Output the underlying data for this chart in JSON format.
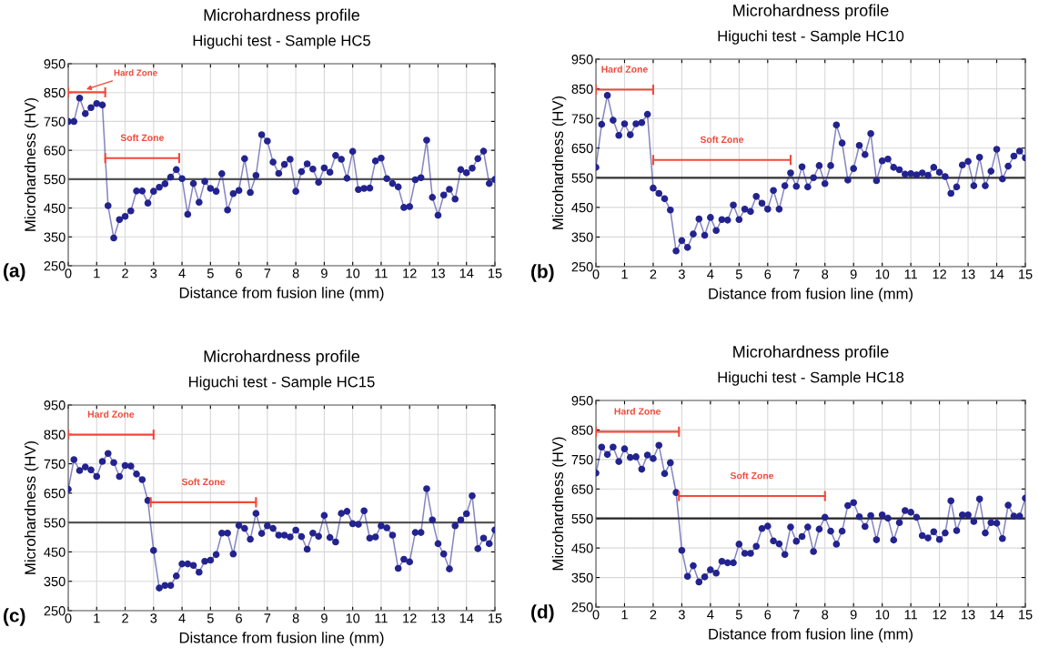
{
  "chart_data": [
    {
      "type": "line",
      "title": "Microhardness profile",
      "subtitle": "Higuchi test - Sample HC5",
      "xlabel": "Distance from fusion line (mm)",
      "ylabel": "Microhardness (HV)",
      "annotations": [
        "(a)"
      ],
      "marker": "circle",
      "grid": true,
      "xlim": [
        0,
        15
      ],
      "ylim": [
        250,
        950
      ],
      "xticks": [
        0,
        1,
        2,
        3,
        4,
        5,
        6,
        7,
        8,
        9,
        10,
        11,
        12,
        13,
        14,
        15
      ],
      "yticks": [
        250,
        350,
        450,
        550,
        650,
        750,
        850,
        950
      ],
      "ref_lines": [
        {
          "axis": "y",
          "value": 550,
          "color": "#555555"
        }
      ],
      "x": [
        0,
        0.2,
        0.4,
        0.6,
        0.8,
        1,
        1.2,
        1.4,
        1.6,
        1.8,
        2,
        2.2,
        2.4,
        2.6,
        2.8,
        3,
        3.2,
        3.4,
        3.6,
        3.8,
        4,
        4.2,
        4.4,
        4.6,
        4.8,
        5,
        5.2,
        5.4,
        5.6,
        5.8,
        6,
        6.2,
        6.4,
        6.6,
        6.8,
        7,
        7.2,
        7.4,
        7.6,
        7.8,
        8,
        8.2,
        8.4,
        8.6,
        8.8,
        9,
        9.2,
        9.4,
        9.6,
        9.8,
        10,
        10.2,
        10.4,
        10.6,
        10.8,
        11,
        11.2,
        11.4,
        11.6,
        11.8,
        12,
        12.2,
        12.4,
        12.6,
        12.8,
        13,
        13.2,
        13.4,
        13.6,
        13.8,
        14,
        14.2,
        14.4,
        14.6,
        14.8,
        15
      ],
      "series": [
        {
          "color": "#23238f",
          "values": [
            750,
            750,
            831,
            777,
            798,
            812,
            807,
            458,
            346,
            410,
            421,
            440,
            509,
            509,
            467,
            508,
            522,
            534,
            557,
            583,
            552,
            428,
            535,
            470,
            542,
            518,
            508,
            569,
            443,
            500,
            511,
            621,
            504,
            563,
            704,
            682,
            609,
            570,
            601,
            619,
            508,
            576,
            603,
            585,
            539,
            589,
            574,
            632,
            619,
            553,
            646,
            514,
            518,
            519,
            613,
            623,
            552,
            535,
            523,
            452,
            455,
            548,
            555,
            685,
            487,
            425,
            495,
            515,
            481,
            583,
            572,
            588,
            621,
            647,
            535,
            549
          ]
        },
        {
          "type": "line",
          "name": "Hard Zone",
          "color": "#f04a3a",
          "marker": "none",
          "x": [
            0,
            1.3
          ],
          "values": [
            851,
            851
          ]
        },
        {
          "type": "line",
          "name": "Soft Zone",
          "color": "#f04a3a",
          "marker": "none",
          "x": [
            1.3,
            3.9
          ],
          "values": [
            623,
            623
          ]
        }
      ]
    },
    {
      "type": "line",
      "title": "Microhardness profile",
      "subtitle": "Higuchi test - Sample HC10",
      "xlabel": "Distance from fusion line (mm)",
      "ylabel": "Microhardness (HV)",
      "annotations": [
        "(b)"
      ],
      "marker": "circle",
      "grid": true,
      "xlim": [
        0,
        15
      ],
      "ylim": [
        250,
        950
      ],
      "xticks": [
        0,
        1,
        2,
        3,
        4,
        5,
        6,
        7,
        8,
        9,
        10,
        11,
        12,
        13,
        14,
        15
      ],
      "yticks": [
        250,
        350,
        450,
        550,
        650,
        750,
        850,
        950
      ],
      "ref_lines": [
        {
          "axis": "y",
          "value": 550,
          "color": "#333333"
        }
      ],
      "x": [
        0,
        0.2,
        0.4,
        0.6,
        0.8,
        1,
        1.2,
        1.4,
        1.6,
        1.8,
        2,
        2.2,
        2.4,
        2.6,
        2.8,
        3,
        3.2,
        3.4,
        3.6,
        3.8,
        4,
        4.2,
        4.4,
        4.6,
        4.8,
        5,
        5.2,
        5.4,
        5.6,
        5.8,
        6,
        6.2,
        6.4,
        6.6,
        6.8,
        7,
        7.2,
        7.4,
        7.6,
        7.8,
        8,
        8.2,
        8.4,
        8.6,
        8.8,
        9,
        9.2,
        9.4,
        9.6,
        9.8,
        10,
        10.2,
        10.4,
        10.6,
        10.8,
        11,
        11.2,
        11.4,
        11.6,
        11.8,
        12,
        12.2,
        12.4,
        12.6,
        12.8,
        13,
        13.2,
        13.4,
        13.6,
        13.8,
        14,
        14.2,
        14.4,
        14.6,
        14.8,
        15
      ],
      "series": [
        {
          "color": "#23238f",
          "values": [
            585,
            730,
            828,
            744,
            693,
            732,
            695,
            732,
            736,
            764,
            515,
            497,
            479,
            441,
            303,
            338,
            315,
            360,
            411,
            356,
            416,
            372,
            409,
            407,
            458,
            409,
            444,
            436,
            487,
            464,
            444,
            507,
            444,
            523,
            566,
            521,
            587,
            519,
            550,
            591,
            530,
            591,
            728,
            667,
            542,
            581,
            659,
            628,
            699,
            540,
            607,
            613,
            585,
            577,
            562,
            564,
            560,
            566,
            558,
            585,
            568,
            554,
            497,
            519,
            593,
            605,
            523,
            619,
            523,
            572,
            646,
            546,
            589,
            623,
            640,
            617
          ]
        },
        {
          "type": "line",
          "name": "Hard Zone",
          "color": "#f04a3a",
          "marker": "none",
          "x": [
            0,
            2
          ],
          "values": [
            847,
            847
          ]
        },
        {
          "type": "line",
          "name": "Soft Zone",
          "color": "#f04a3a",
          "marker": "none",
          "x": [
            2,
            6.8
          ],
          "values": [
            610,
            610
          ]
        }
      ]
    },
    {
      "type": "line",
      "title": "Microhardness profile",
      "subtitle": "Higuchi test - Sample HC15",
      "xlabel": "Distance from fusion line (mm)",
      "ylabel": "Microhardness (HV)",
      "annotations": [
        "(c)"
      ],
      "marker": "circle",
      "grid": true,
      "xlim": [
        0,
        15
      ],
      "ylim": [
        250,
        950
      ],
      "xticks": [
        0,
        1,
        2,
        3,
        4,
        5,
        6,
        7,
        8,
        9,
        10,
        11,
        12,
        13,
        14,
        15
      ],
      "yticks": [
        250,
        350,
        450,
        550,
        650,
        750,
        850,
        950
      ],
      "ref_lines": [
        {
          "axis": "y",
          "value": 550,
          "color": "#555555"
        }
      ],
      "x": [
        0,
        0.2,
        0.4,
        0.6,
        0.8,
        1,
        1.2,
        1.4,
        1.6,
        1.8,
        2,
        2.2,
        2.4,
        2.6,
        2.8,
        3,
        3.2,
        3.4,
        3.6,
        3.8,
        4,
        4.2,
        4.4,
        4.6,
        4.8,
        5,
        5.2,
        5.4,
        5.6,
        5.8,
        6,
        6.2,
        6.4,
        6.6,
        6.8,
        7,
        7.2,
        7.4,
        7.6,
        7.8,
        8,
        8.2,
        8.4,
        8.6,
        8.8,
        9,
        9.2,
        9.4,
        9.6,
        9.8,
        10,
        10.2,
        10.4,
        10.6,
        10.8,
        11,
        11.2,
        11.4,
        11.6,
        11.8,
        12,
        12.2,
        12.4,
        12.6,
        12.8,
        13,
        13.2,
        13.4,
        13.6,
        13.8,
        14,
        14.2,
        14.4,
        14.6,
        14.8,
        15
      ],
      "series": [
        {
          "color": "#23238f",
          "values": [
            663,
            764,
            727,
            739,
            729,
            707,
            758,
            785,
            754,
            707,
            744,
            742,
            715,
            696,
            625,
            455,
            327,
            336,
            336,
            368,
            409,
            409,
            404,
            381,
            418,
            422,
            441,
            514,
            514,
            443,
            540,
            530,
            493,
            581,
            513,
            539,
            530,
            507,
            507,
            501,
            524,
            502,
            459,
            514,
            503,
            574,
            499,
            484,
            581,
            588,
            546,
            544,
            590,
            497,
            501,
            539,
            532,
            507,
            394,
            425,
            416,
            516,
            516,
            665,
            559,
            478,
            443,
            392,
            539,
            559,
            580,
            641,
            461,
            497,
            478,
            525
          ]
        },
        {
          "type": "line",
          "name": "Hard Zone",
          "color": "#f04a3a",
          "marker": "none",
          "x": [
            0,
            3
          ],
          "values": [
            849,
            849
          ]
        },
        {
          "type": "line",
          "name": "Soft Zone",
          "color": "#f04a3a",
          "marker": "none",
          "x": [
            2.9,
            6.6
          ],
          "values": [
            619,
            619
          ]
        }
      ]
    },
    {
      "type": "line",
      "title": "Microhardness profile",
      "subtitle": "Higuchi test - Sample HC18",
      "xlabel": "Distance from fusion line (mm)",
      "ylabel": "Microhardness (HV)",
      "annotations": [
        "(d)"
      ],
      "marker": "circle",
      "grid": true,
      "xlim": [
        0,
        15
      ],
      "ylim": [
        250,
        950
      ],
      "xticks": [
        0,
        1,
        2,
        3,
        4,
        5,
        6,
        7,
        8,
        9,
        10,
        11,
        12,
        13,
        14,
        15
      ],
      "yticks": [
        250,
        350,
        450,
        550,
        650,
        750,
        850,
        950
      ],
      "ref_lines": [
        {
          "axis": "y",
          "value": 550,
          "color": "#222222"
        }
      ],
      "x": [
        0,
        0.2,
        0.4,
        0.6,
        0.8,
        1,
        1.2,
        1.4,
        1.6,
        1.8,
        2,
        2.2,
        2.4,
        2.6,
        2.8,
        3,
        3.2,
        3.4,
        3.6,
        3.8,
        4,
        4.2,
        4.4,
        4.6,
        4.8,
        5,
        5.2,
        5.4,
        5.6,
        5.8,
        6,
        6.2,
        6.4,
        6.6,
        6.8,
        7,
        7.2,
        7.4,
        7.6,
        7.8,
        8,
        8.2,
        8.4,
        8.6,
        8.8,
        9,
        9.2,
        9.4,
        9.6,
        9.8,
        10,
        10.2,
        10.4,
        10.6,
        10.8,
        11,
        11.2,
        11.4,
        11.6,
        11.8,
        12,
        12.2,
        12.4,
        12.6,
        12.8,
        13,
        13.2,
        13.4,
        13.6,
        13.8,
        14,
        14.2,
        14.4,
        14.6,
        14.8,
        15
      ],
      "series": [
        {
          "color": "#23238f",
          "values": [
            704,
            792,
            767,
            792,
            743,
            786,
            757,
            759,
            717,
            765,
            753,
            798,
            702,
            739,
            638,
            442,
            354,
            390,
            335,
            352,
            376,
            365,
            405,
            400,
            400,
            463,
            432,
            432,
            456,
            516,
            524,
            474,
            464,
            428,
            521,
            473,
            489,
            521,
            438,
            514,
            554,
            507,
            463,
            507,
            594,
            604,
            556,
            523,
            560,
            478,
            562,
            551,
            477,
            536,
            577,
            571,
            554,
            492,
            484,
            505,
            479,
            501,
            610,
            509,
            562,
            562,
            540,
            616,
            501,
            536,
            534,
            482,
            595,
            558,
            558,
            619
          ]
        },
        {
          "type": "line",
          "name": "Hard Zone",
          "color": "#f04a3a",
          "marker": "none",
          "x": [
            0,
            2.9
          ],
          "values": [
            844,
            844
          ]
        },
        {
          "type": "line",
          "name": "Soft Zone",
          "color": "#f04a3a",
          "marker": "none",
          "x": [
            2.9,
            8
          ],
          "values": [
            626,
            626
          ]
        }
      ]
    }
  ]
}
